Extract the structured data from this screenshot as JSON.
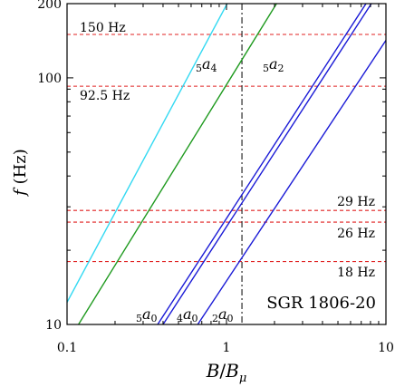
{
  "chart_data": {
    "type": "line",
    "xscale": "log",
    "yscale": "log",
    "xlim": [
      0.1,
      10
    ],
    "ylim": [
      10,
      200
    ],
    "xlabel": {
      "main": "B",
      "slash": "/",
      "sub_main": "B",
      "sub": "μ"
    },
    "ylabel": {
      "main": "f",
      "unit": "(Hz)"
    },
    "xticks": [
      {
        "value": 0.1,
        "label": "0.1"
      },
      {
        "value": 1,
        "label": "1"
      },
      {
        "value": 10,
        "label": "10"
      }
    ],
    "yticks": [
      {
        "value": 10,
        "label": "10"
      },
      {
        "value": 100,
        "label": "100"
      },
      {
        "value": 200,
        "label": "200"
      }
    ],
    "series": [
      {
        "name": "5a4",
        "label_pre": "5",
        "label_main": "a",
        "label_sub": "4",
        "color": "#33d9f2",
        "x": [
          0.1,
          1.01
        ],
        "y": [
          12.3,
          200
        ]
      },
      {
        "name": "5a2",
        "label_pre": "5",
        "label_main": "a",
        "label_sub": "2",
        "color": "#1f9a1f",
        "x": [
          0.118,
          2.06
        ],
        "y": [
          10,
          200
        ]
      },
      {
        "name": "5a0 (upper)",
        "label_pre": "5",
        "label_main": "a",
        "label_sub": "0",
        "color": "#1a1ad6",
        "x": [
          0.37,
          7.5
        ],
        "y": [
          10,
          200
        ]
      },
      {
        "name": "4a0",
        "label_pre": "4",
        "label_main": "a",
        "label_sub": "0",
        "color": "#1a1ad6",
        "x": [
          0.4,
          8.1
        ],
        "y": [
          10,
          200
        ]
      },
      {
        "name": "2a0",
        "label_pre": "2",
        "label_main": "a",
        "label_sub": "0",
        "color": "#1a1ad6",
        "x": [
          0.66,
          10
        ],
        "y": [
          10,
          142
        ]
      }
    ],
    "hlines": [
      {
        "y": 150,
        "label": "150 Hz",
        "color": "#e02020"
      },
      {
        "y": 92.5,
        "label": "92.5 Hz",
        "color": "#e02020"
      },
      {
        "y": 29,
        "label": "29 Hz",
        "color": "#e02020"
      },
      {
        "y": 26,
        "label": "26 Hz",
        "color": "#e02020"
      },
      {
        "y": 18,
        "label": "18 Hz",
        "color": "#e02020"
      }
    ],
    "vline": {
      "x": 1.25,
      "color": "#000000"
    },
    "annotation": "SGR 1806-20",
    "grid": false
  }
}
